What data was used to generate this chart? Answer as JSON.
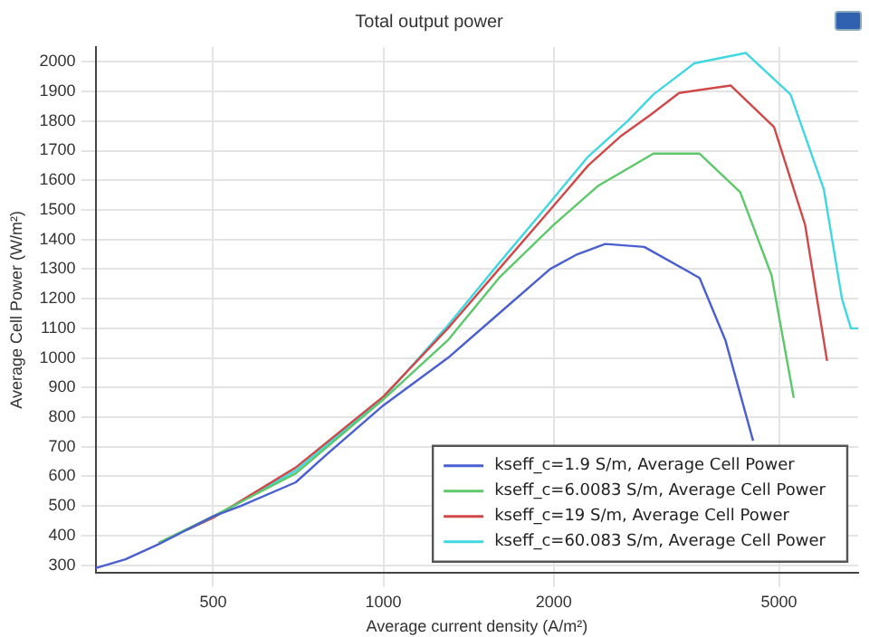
{
  "chart_data": {
    "type": "line",
    "title": "Total output power",
    "xlabel": "Average current density (A/m²)",
    "ylabel": "Average Cell Power (W/m²)",
    "log": "x",
    "grid": true,
    "legend": "bottom right",
    "marker": "none",
    "line_style": "solid",
    "xlim": [
      310,
      6900
    ],
    "xticks": [
      500,
      1000,
      2000,
      5000
    ],
    "ylim": [
      275,
      2050
    ],
    "yticks": [
      300,
      400,
      500,
      600,
      700,
      800,
      900,
      1000,
      1100,
      1200,
      1300,
      1400,
      1500,
      1600,
      1700,
      1800,
      1900,
      2000
    ],
    "series": [
      {
        "name": "kseff_c=1.9 S/m, Average Cell Power",
        "color": "#4a5fd0",
        "x": [
          310,
          350,
          400,
          500,
          560,
          700,
          800,
          1000,
          1300,
          1600,
          1970,
          2200,
          2465,
          2890,
          3620,
          4020,
          4500
        ],
        "values": [
          290,
          320,
          370,
          465,
          500,
          580,
          680,
          840,
          1000,
          1150,
          1300,
          1350,
          1385,
          1375,
          1270,
          1060,
          720
        ]
      },
      {
        "name": "kseff_c=6.0083 S/m, Average Cell Power",
        "color": "#5cc86a",
        "x": [
          400,
          500,
          700,
          1000,
          1300,
          1600,
          2000,
          2390,
          3000,
          3620,
          4270,
          4850,
          5310
        ],
        "values": [
          375,
          465,
          610,
          860,
          1060,
          1270,
          1450,
          1580,
          1690,
          1690,
          1560,
          1280,
          865
        ]
      },
      {
        "name": "kseff_c=19 S/m, Average Cell Power",
        "color": "#d04848",
        "x": [
          450,
          500,
          700,
          1000,
          1300,
          1600,
          1970,
          2300,
          2630,
          2960,
          3330,
          4110,
          4900,
          5560,
          6080
        ],
        "values": [
          420,
          460,
          630,
          870,
          1100,
          1300,
          1500,
          1650,
          1750,
          1820,
          1895,
          1920,
          1780,
          1450,
          990
        ]
      },
      {
        "name": "kseff_c=60.083 S/m, Average Cell Power",
        "color": "#40d8e0",
        "x": [
          450,
          500,
          700,
          1000,
          1300,
          1600,
          1920,
          2300,
          2700,
          3000,
          3540,
          4370,
          5240,
          6000,
          6460,
          6700,
          6900
        ],
        "values": [
          420,
          460,
          620,
          865,
          1110,
          1320,
          1500,
          1680,
          1800,
          1890,
          1995,
          2030,
          1890,
          1570,
          1200,
          1100,
          1100
        ]
      }
    ]
  }
}
